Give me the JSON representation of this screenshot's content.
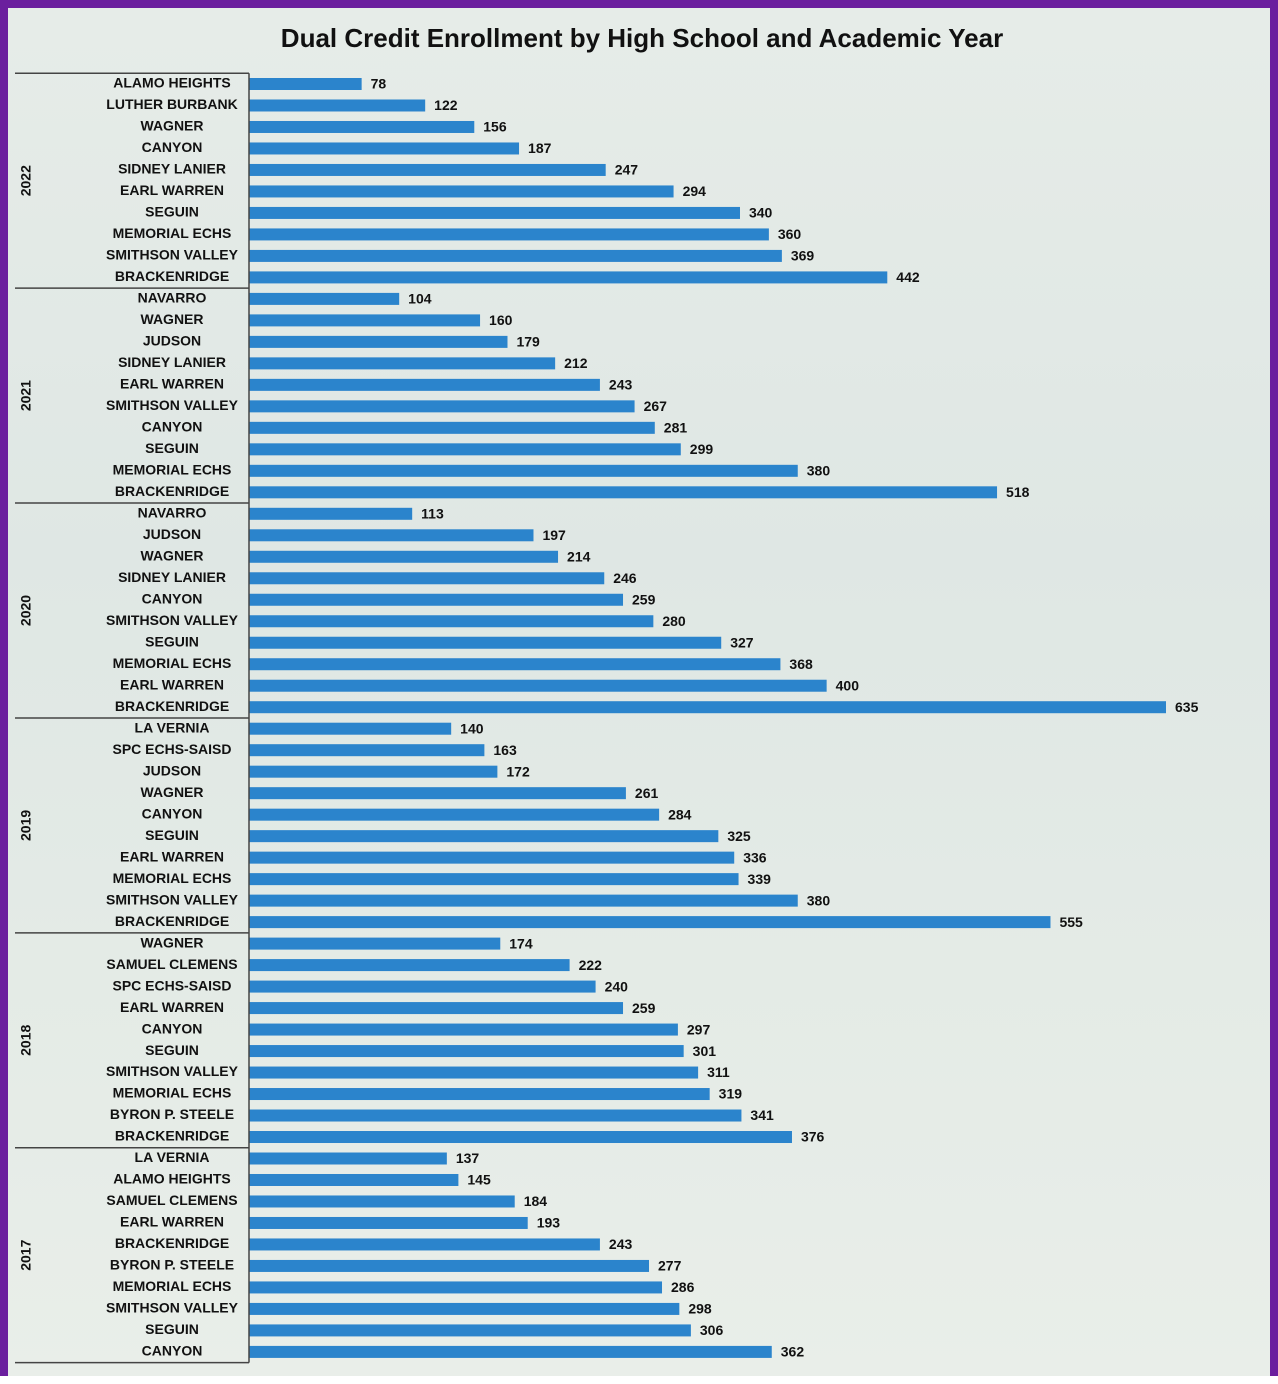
{
  "chart_data": {
    "type": "bar",
    "title": "Dual Credit Enrollment by High School and Academic Year",
    "color": "#2b84cc",
    "groups": [
      {
        "name": "2022",
        "categories": [
          "ALAMO HEIGHTS",
          "LUTHER BURBANK",
          "WAGNER",
          "CANYON",
          "SIDNEY LANIER",
          "EARL WARREN",
          "SEGUIN",
          "MEMORIAL ECHS",
          "SMITHSON VALLEY",
          "BRACKENRIDGE"
        ],
        "values": [
          78,
          122,
          156,
          187,
          247,
          294,
          340,
          360,
          369,
          442
        ]
      },
      {
        "name": "2021",
        "categories": [
          "NAVARRO",
          "WAGNER",
          "JUDSON",
          "SIDNEY LANIER",
          "EARL WARREN",
          "SMITHSON VALLEY",
          "CANYON",
          "SEGUIN",
          "MEMORIAL ECHS",
          "BRACKENRIDGE"
        ],
        "values": [
          104,
          160,
          179,
          212,
          243,
          267,
          281,
          299,
          380,
          518
        ]
      },
      {
        "name": "2020",
        "categories": [
          "NAVARRO",
          "JUDSON",
          "WAGNER",
          "SIDNEY LANIER",
          "CANYON",
          "SMITHSON VALLEY",
          "SEGUIN",
          "MEMORIAL ECHS",
          "EARL WARREN",
          "BRACKENRIDGE"
        ],
        "values": [
          113,
          197,
          214,
          246,
          259,
          280,
          327,
          368,
          400,
          635
        ]
      },
      {
        "name": "2019",
        "categories": [
          "LA VERNIA",
          "SPC ECHS-SAISD",
          "JUDSON",
          "WAGNER",
          "CANYON",
          "SEGUIN",
          "EARL WARREN",
          "MEMORIAL ECHS",
          "SMITHSON VALLEY",
          "BRACKENRIDGE"
        ],
        "values": [
          140,
          163,
          172,
          261,
          284,
          325,
          336,
          339,
          380,
          555
        ]
      },
      {
        "name": "2018",
        "categories": [
          "WAGNER",
          "SAMUEL CLEMENS",
          "SPC ECHS-SAISD",
          "EARL WARREN",
          "CANYON",
          "SEGUIN",
          "SMITHSON VALLEY",
          "MEMORIAL ECHS",
          "BYRON P. STEELE",
          "BRACKENRIDGE"
        ],
        "values": [
          174,
          222,
          240,
          259,
          297,
          301,
          311,
          319,
          341,
          376
        ]
      },
      {
        "name": "2017",
        "categories": [
          "LA VERNIA",
          "ALAMO HEIGHTS",
          "SAMUEL CLEMENS",
          "EARL WARREN",
          "BRACKENRIDGE",
          "BYRON P. STEELE",
          "MEMORIAL ECHS",
          "SMITHSON VALLEY",
          "SEGUIN",
          "CANYON"
        ],
        "values": [
          137,
          145,
          184,
          193,
          243,
          277,
          286,
          298,
          306,
          362
        ]
      }
    ]
  }
}
